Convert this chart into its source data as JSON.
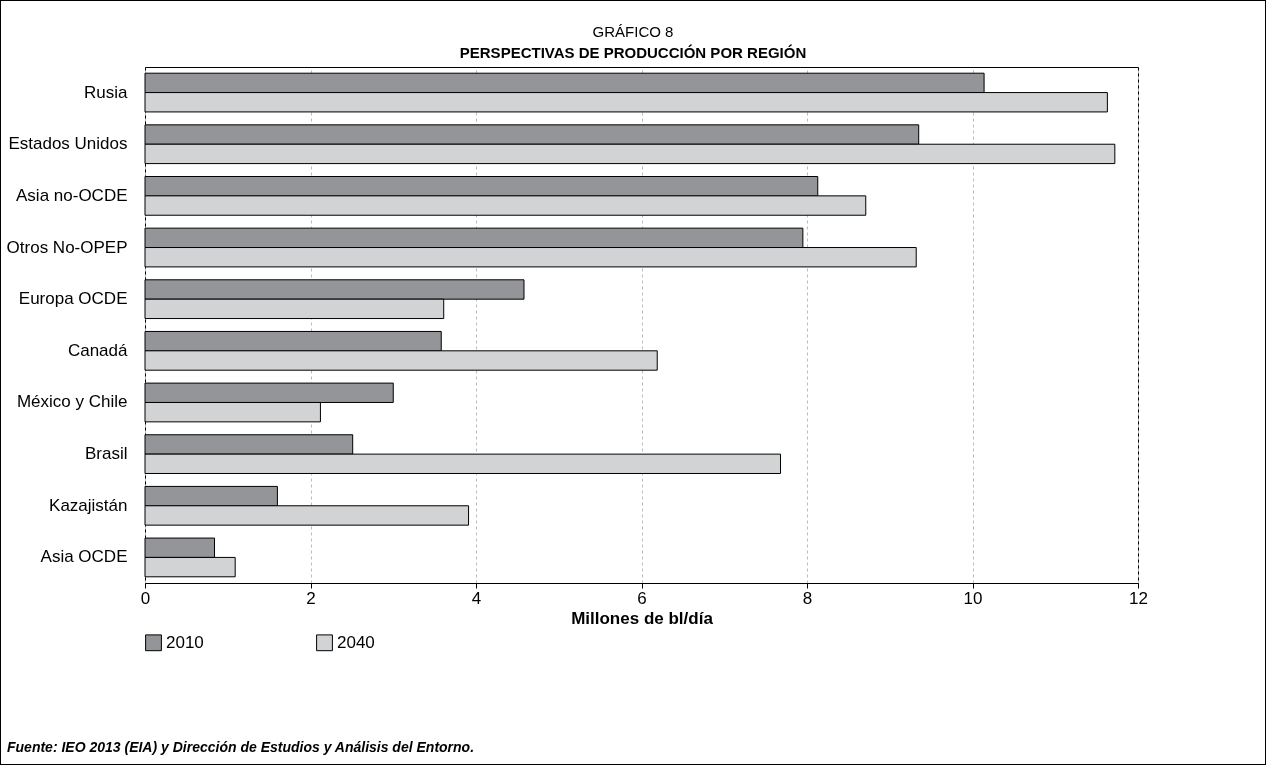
{
  "chart_data": {
    "type": "bar",
    "orientation": "horizontal",
    "subtitle": "GRÁFICO 8",
    "title": "PERSPECTIVAS DE PRODUCCIÓN POR REGIÓN",
    "categories": [
      "Rusia",
      "Estados Unidos",
      "Asia no-OCDE",
      "Otros No-OPEP",
      "Europa OCDE",
      "Canadá",
      "México y Chile",
      "Brasil",
      "Kazajistán",
      "Asia OCDE"
    ],
    "series": [
      {
        "name": "2010",
        "color": "#939598",
        "values": [
          10.14,
          9.35,
          8.13,
          7.95,
          4.58,
          3.58,
          3.0,
          2.51,
          1.6,
          0.84
        ]
      },
      {
        "name": "2040",
        "color": "#d1d3d4",
        "values": [
          11.63,
          11.72,
          8.71,
          9.32,
          3.61,
          6.19,
          2.12,
          7.68,
          3.91,
          1.09
        ]
      }
    ],
    "xlim": [
      0,
      12
    ],
    "xticks": [
      0,
      2,
      4,
      6,
      8,
      10,
      12
    ],
    "xlabel": "Millones de bl/día",
    "grid": "x",
    "legend": "bottom",
    "annotations": [
      "Fuente: IEO 2013 (EIA) y Dirección de Estudios y Análisis del Entorno."
    ]
  }
}
